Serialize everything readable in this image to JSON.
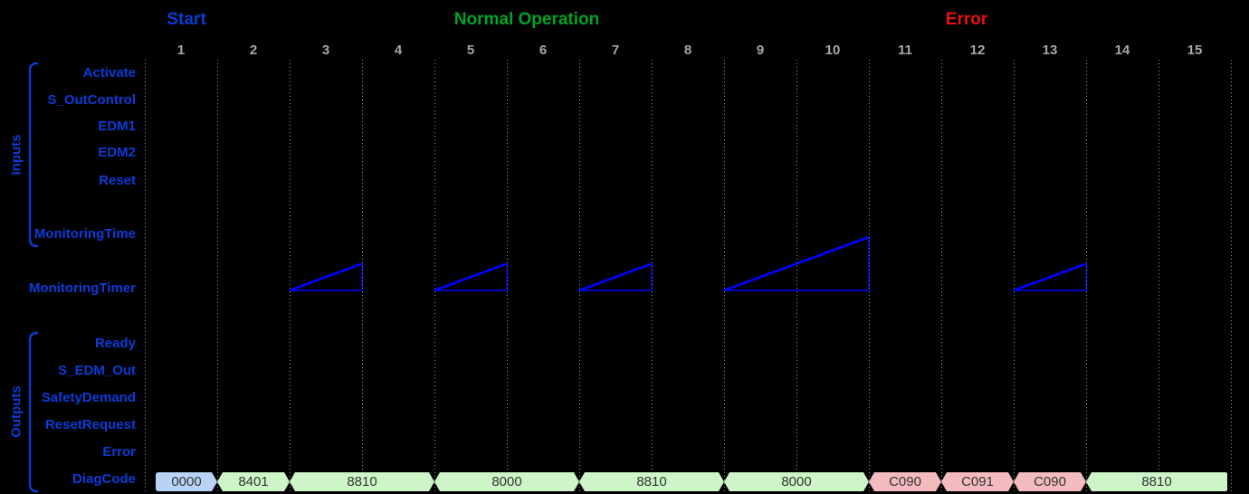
{
  "diagram": {
    "phases": [
      {
        "label": "Start",
        "color": "#0B3CD6"
      },
      {
        "label": "Normal Operation",
        "color": "#00A428"
      },
      {
        "label": "Error",
        "color": "#E81010"
      }
    ],
    "columns": [
      "1",
      "2",
      "3",
      "4",
      "5",
      "6",
      "7",
      "8",
      "9",
      "10",
      "11",
      "12",
      "13",
      "14",
      "15"
    ],
    "inputs_group_label": "Inputs",
    "outputs_group_label": "Outputs",
    "input_signals": [
      "Activate",
      "S_OutControl",
      "EDM1",
      "EDM2",
      "Reset",
      "MonitoringTime"
    ],
    "timer_signal": "MonitoringTimer",
    "output_signals": [
      "Ready",
      "S_EDM_Out",
      "SafetyDemand",
      "ResetRequest",
      "Error",
      "DiagCode"
    ]
  },
  "chart_data": {
    "type": "timing-diagram",
    "x_ticks": [
      1,
      2,
      3,
      4,
      5,
      6,
      7,
      8,
      9,
      10,
      11,
      12,
      13,
      14,
      15
    ],
    "phase_spans": [
      {
        "label": "Start",
        "center_col": 1
      },
      {
        "label": "Normal Operation",
        "center_cols": [
          5,
          6
        ]
      },
      {
        "label": "Error",
        "center_cols": [
          11,
          12
        ]
      }
    ],
    "timer_ramps": [
      {
        "from_col": 3,
        "to_col": 3
      },
      {
        "from_col": 5,
        "to_col": 5
      },
      {
        "from_col": 7,
        "to_col": 7
      },
      {
        "from_col": 9,
        "to_col": 10
      },
      {
        "from_col": 13,
        "to_col": 13
      }
    ],
    "diag_code_segments": [
      {
        "value": "0000",
        "from_col": 1,
        "to_col": 1,
        "state": "init"
      },
      {
        "value": "8401",
        "from_col": 2,
        "to_col": 2,
        "state": "ok"
      },
      {
        "value": "8810",
        "from_col": 3,
        "to_col": 4,
        "state": "ok"
      },
      {
        "value": "8000",
        "from_col": 5,
        "to_col": 6,
        "state": "ok"
      },
      {
        "value": "8810",
        "from_col": 7,
        "to_col": 8,
        "state": "ok"
      },
      {
        "value": "8000",
        "from_col": 9,
        "to_col": 10,
        "state": "ok"
      },
      {
        "value": "C090",
        "from_col": 11,
        "to_col": 11,
        "state": "error"
      },
      {
        "value": "C091",
        "from_col": 12,
        "to_col": 12,
        "state": "error"
      },
      {
        "value": "C090",
        "from_col": 13,
        "to_col": 13,
        "state": "error"
      },
      {
        "value": "8810",
        "from_col": 14,
        "to_col": 15,
        "state": "ok"
      }
    ]
  },
  "colors": {
    "background": "#000000",
    "label_blue": "#0B3CD6",
    "waveform_blue": "#0000FF",
    "grid_gray": "#9A9A9A",
    "number_gray": "#A8A8A8",
    "seg_fill_init": "#B9D3F6",
    "seg_fill_ok": "#CDF5C8",
    "seg_fill_error": "#F4BBBE",
    "seg_text": "#333333"
  }
}
